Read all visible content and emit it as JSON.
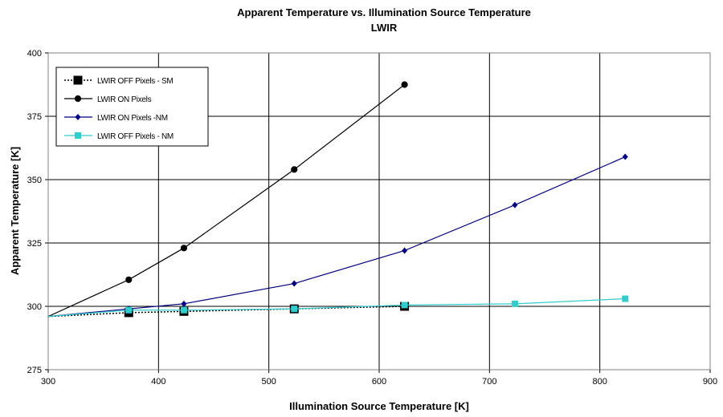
{
  "chart_data": {
    "type": "line",
    "title": "Apparent Temperature vs. Illumination Source Temperature",
    "subtitle": "LWIR",
    "xlabel": "Illumination Source Temperature [K]",
    "ylabel": "Apparent Temperature [K]",
    "xlim": [
      300,
      900
    ],
    "ylim": [
      275,
      400
    ],
    "xticks": [
      300,
      400,
      500,
      600,
      700,
      800,
      900
    ],
    "yticks": [
      275,
      300,
      325,
      350,
      375,
      400
    ],
    "grid": true,
    "legend_position": "top-left",
    "series": [
      {
        "name": "LWIR OFF Pixels - SM",
        "color": "#000000",
        "line_style": "dotted",
        "marker": "square-large",
        "x": [
          300,
          373,
          423,
          523,
          623
        ],
        "y": [
          296,
          297.5,
          298,
          299,
          300
        ]
      },
      {
        "name": "LWIR ON Pixels",
        "color": "#000000",
        "line_style": "solid",
        "marker": "circle",
        "x": [
          300,
          373,
          423,
          523,
          623
        ],
        "y": [
          296,
          310.5,
          323,
          354,
          387.5
        ]
      },
      {
        "name": "LWIR ON Pixels -NM",
        "color": "#000080",
        "line_style": "solid",
        "marker": "diamond",
        "x": [
          300,
          373,
          423,
          523,
          623,
          723,
          823
        ],
        "y": [
          296,
          299,
          301,
          309,
          322,
          340,
          359
        ]
      },
      {
        "name": "LWIR OFF Pixels - NM",
        "color": "#33CCCC",
        "line_style": "solid",
        "marker": "square",
        "x": [
          300,
          373,
          423,
          523,
          623,
          723,
          823
        ],
        "y": [
          296,
          298.5,
          298.5,
          299,
          300.5,
          301,
          303
        ]
      }
    ]
  }
}
